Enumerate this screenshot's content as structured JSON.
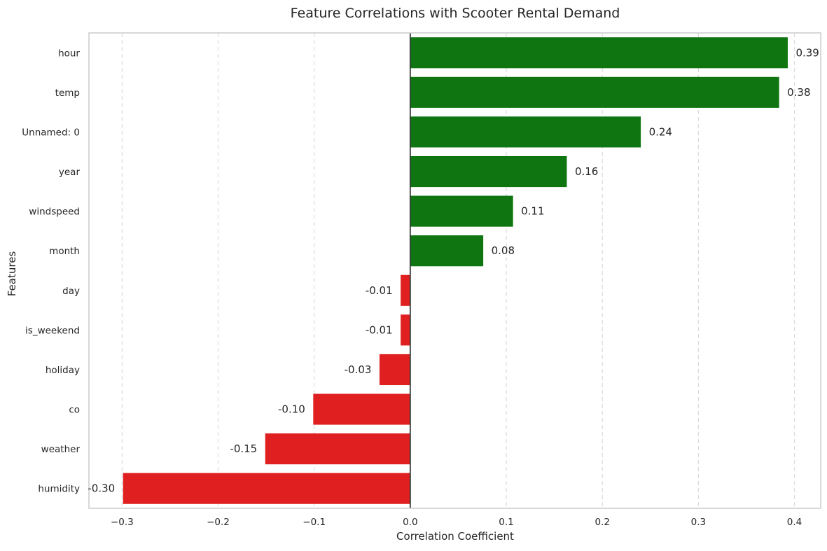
{
  "chart_data": {
    "type": "bar",
    "orientation": "horizontal",
    "title": "Feature Correlations with Scooter Rental Demand",
    "xlabel": "Correlation Coefficient",
    "ylabel": "Features",
    "categories": [
      "hour",
      "temp",
      "Unnamed: 0",
      "year",
      "windspeed",
      "month",
      "day",
      "is_weekend",
      "holiday",
      "co",
      "weather",
      "humidity"
    ],
    "values": [
      0.393,
      0.384,
      0.24,
      0.163,
      0.107,
      0.076,
      -0.01,
      -0.01,
      -0.032,
      -0.101,
      -0.151,
      -0.299
    ],
    "value_labels": [
      "0.39",
      "0.38",
      "0.24",
      "0.16",
      "0.11",
      "0.08",
      "-0.01",
      "-0.01",
      "-0.03",
      "-0.10",
      "-0.15",
      "-0.30"
    ],
    "xlim": [
      -0.3345,
      0.4273
    ],
    "xticks": [
      -0.3,
      -0.2,
      -0.1,
      0.0,
      0.1,
      0.2,
      0.3,
      0.4
    ],
    "xtick_labels": [
      "−0.3",
      "−0.2",
      "−0.1",
      "0.0",
      "0.1",
      "0.2",
      "0.3",
      "0.4"
    ],
    "grid": "x-dashed",
    "zero_line": true,
    "legend": "none",
    "colors": {
      "positive": "#0e7510",
      "negative": "#e02020",
      "grid": "#dcdcdc",
      "spine": "#cccccc",
      "zero_line": "#3a3a3a",
      "text": "#262626"
    }
  }
}
